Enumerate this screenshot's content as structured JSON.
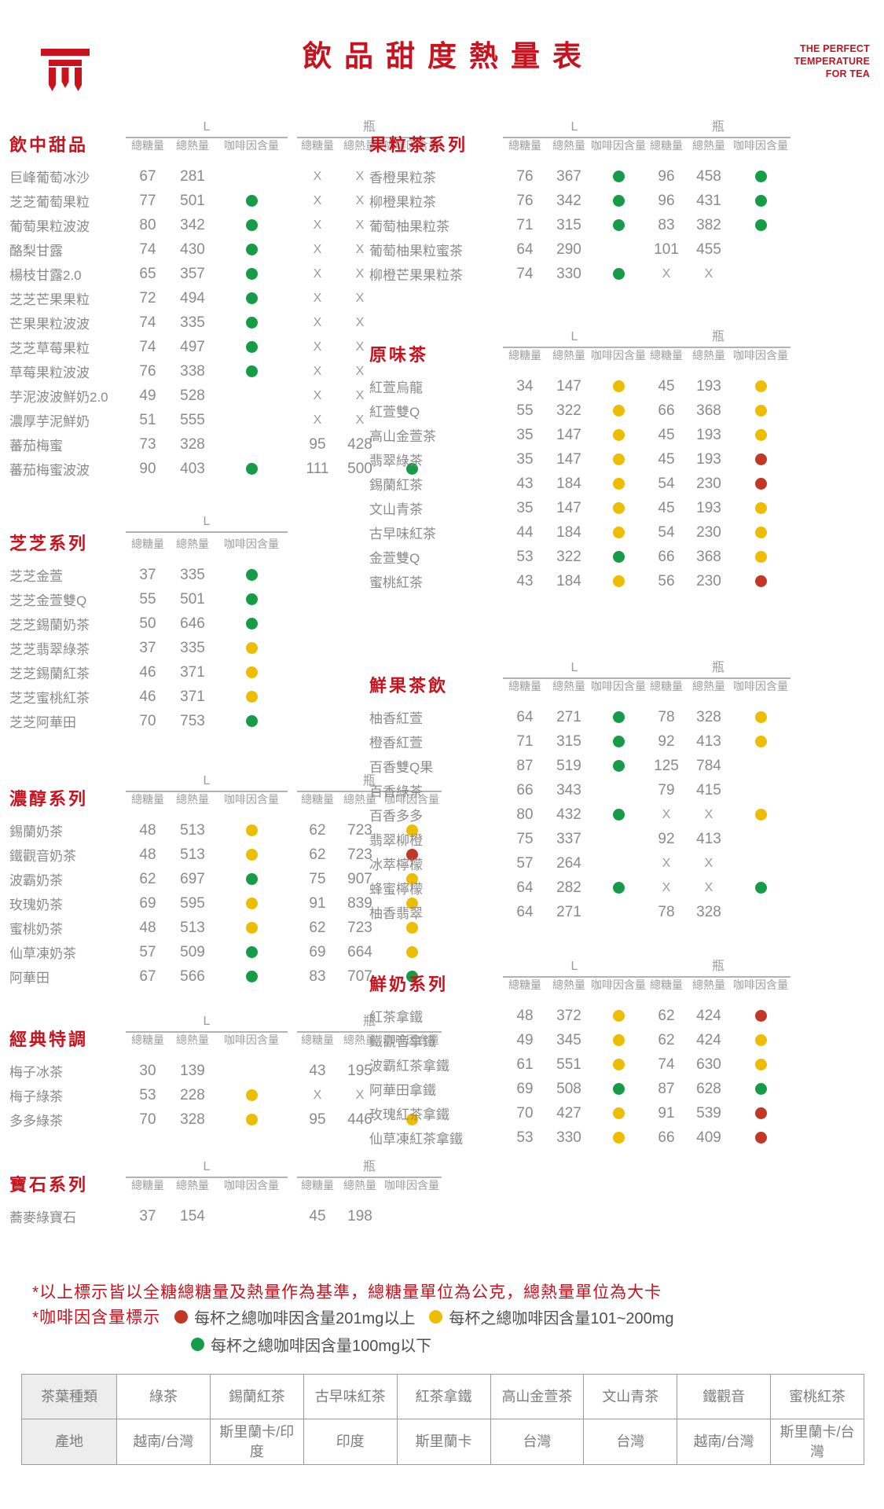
{
  "header": {
    "title": "飲品甜度熱量表",
    "slogan": [
      "THE PERFECT",
      "TEMPERATURE",
      "FOR TEA"
    ]
  },
  "colors": {
    "brand_red": "#C8131E",
    "caffeine_green": "#169C47",
    "caffeine_yellow": "#EEBC00",
    "caffeine_red": "#C23726",
    "text_gray": "#8A8A8A"
  },
  "headers": {
    "size_l": "L",
    "size_bottle": "瓶",
    "sugar": "總糖量",
    "calories": "總熱量",
    "caffeine": "咖啡因含量"
  },
  "sections": [
    {
      "id": "drink-desserts",
      "title": "飲中甜品",
      "side": "left",
      "has_bottle": true,
      "rows": [
        {
          "n": "巨峰葡萄冰沙",
          "l": [
            "67",
            "281",
            "none"
          ],
          "b": [
            "X",
            "X",
            "none"
          ]
        },
        {
          "n": "芝芝葡萄果粒",
          "l": [
            "77",
            "501",
            "green"
          ],
          "b": [
            "X",
            "X",
            "none"
          ]
        },
        {
          "n": "葡萄果粒波波",
          "l": [
            "80",
            "342",
            "green"
          ],
          "b": [
            "X",
            "X",
            "none"
          ]
        },
        {
          "n": "酪梨甘露",
          "l": [
            "74",
            "430",
            "green"
          ],
          "b": [
            "X",
            "X",
            "none"
          ]
        },
        {
          "n": "楊枝甘露2.0",
          "l": [
            "65",
            "357",
            "green"
          ],
          "b": [
            "X",
            "X",
            "none"
          ]
        },
        {
          "n": "芝芝芒果果粒",
          "l": [
            "72",
            "494",
            "green"
          ],
          "b": [
            "X",
            "X",
            "none"
          ]
        },
        {
          "n": "芒果果粒波波",
          "l": [
            "74",
            "335",
            "green"
          ],
          "b": [
            "X",
            "X",
            "none"
          ]
        },
        {
          "n": "芝芝草莓果粒",
          "l": [
            "74",
            "497",
            "green"
          ],
          "b": [
            "X",
            "X",
            "none"
          ]
        },
        {
          "n": "草莓果粒波波",
          "l": [
            "76",
            "338",
            "green"
          ],
          "b": [
            "X",
            "X",
            "none"
          ]
        },
        {
          "n": "芋泥波波鮮奶2.0",
          "l": [
            "49",
            "528",
            "none"
          ],
          "b": [
            "X",
            "X",
            "none"
          ]
        },
        {
          "n": "濃厚芋泥鮮奶",
          "l": [
            "51",
            "555",
            "none"
          ],
          "b": [
            "X",
            "X",
            "none"
          ]
        },
        {
          "n": "蕃茄梅蜜",
          "l": [
            "73",
            "328",
            "none"
          ],
          "b": [
            "95",
            "428",
            "none"
          ]
        },
        {
          "n": "蕃茄梅蜜波波",
          "l": [
            "90",
            "403",
            "green"
          ],
          "b": [
            "111",
            "500",
            "green"
          ]
        }
      ]
    },
    {
      "id": "cheese-series",
      "title": "芝芝系列",
      "side": "left",
      "has_bottle": false,
      "rows": [
        {
          "n": "芝芝金萱",
          "l": [
            "37",
            "335",
            "green"
          ]
        },
        {
          "n": "芝芝金萱雙Q",
          "l": [
            "55",
            "501",
            "green"
          ]
        },
        {
          "n": "芝芝錫蘭奶茶",
          "l": [
            "50",
            "646",
            "green"
          ]
        },
        {
          "n": "芝芝翡翠綠茶",
          "l": [
            "37",
            "335",
            "yellow"
          ]
        },
        {
          "n": "芝芝錫蘭紅茶",
          "l": [
            "46",
            "371",
            "yellow"
          ]
        },
        {
          "n": "芝芝蜜桃紅茶",
          "l": [
            "46",
            "371",
            "yellow"
          ]
        },
        {
          "n": "芝芝阿華田",
          "l": [
            "70",
            "753",
            "green"
          ]
        }
      ]
    },
    {
      "id": "rich-milk-tea-series",
      "title": "濃醇系列",
      "side": "left",
      "has_bottle": true,
      "rows": [
        {
          "n": "錫蘭奶茶",
          "l": [
            "48",
            "513",
            "yellow"
          ],
          "b": [
            "62",
            "723",
            "yellow"
          ]
        },
        {
          "n": "鐵觀音奶茶",
          "l": [
            "48",
            "513",
            "yellow"
          ],
          "b": [
            "62",
            "723",
            "red"
          ]
        },
        {
          "n": "波霸奶茶",
          "l": [
            "62",
            "697",
            "green"
          ],
          "b": [
            "75",
            "907",
            "yellow"
          ]
        },
        {
          "n": "玫瑰奶茶",
          "l": [
            "69",
            "595",
            "yellow"
          ],
          "b": [
            "91",
            "839",
            "yellow"
          ]
        },
        {
          "n": "蜜桃奶茶",
          "l": [
            "48",
            "513",
            "yellow"
          ],
          "b": [
            "62",
            "723",
            "yellow"
          ]
        },
        {
          "n": "仙草凍奶茶",
          "l": [
            "57",
            "509",
            "green"
          ],
          "b": [
            "69",
            "664",
            "yellow"
          ]
        },
        {
          "n": "阿華田",
          "l": [
            "67",
            "566",
            "green"
          ],
          "b": [
            "83",
            "707",
            "green"
          ]
        }
      ]
    },
    {
      "id": "classic-special",
      "title": "經典特調",
      "side": "left",
      "has_bottle": true,
      "rows": [
        {
          "n": "梅子冰茶",
          "l": [
            "30",
            "139",
            "none"
          ],
          "b": [
            "43",
            "195",
            "none"
          ]
        },
        {
          "n": "梅子綠茶",
          "l": [
            "53",
            "228",
            "yellow"
          ],
          "b": [
            "X",
            "X",
            "none"
          ]
        },
        {
          "n": "多多綠茶",
          "l": [
            "70",
            "328",
            "yellow"
          ],
          "b": [
            "95",
            "446",
            "yellow"
          ]
        }
      ]
    },
    {
      "id": "gem-series",
      "title": "寶石系列",
      "side": "left",
      "has_bottle": true,
      "rows": [
        {
          "n": "蕎麥綠寶石",
          "l": [
            "37",
            "154",
            "none"
          ],
          "b": [
            "45",
            "198",
            "none"
          ]
        }
      ]
    },
    {
      "id": "fruit-tea-series",
      "title": "果粒茶系列",
      "side": "right",
      "has_bottle": true,
      "rows": [
        {
          "n": "香橙果粒茶",
          "l": [
            "76",
            "367",
            "green"
          ],
          "b": [
            "96",
            "458",
            "green"
          ]
        },
        {
          "n": "柳橙果粒茶",
          "l": [
            "76",
            "342",
            "green"
          ],
          "b": [
            "96",
            "431",
            "green"
          ]
        },
        {
          "n": "葡萄柚果粒茶",
          "l": [
            "71",
            "315",
            "green"
          ],
          "b": [
            "83",
            "382",
            "green"
          ]
        },
        {
          "n": "葡萄柚果粒蜜茶",
          "l": [
            "64",
            "290",
            "none"
          ],
          "b": [
            "101",
            "455",
            "none"
          ]
        },
        {
          "n": "柳橙芒果果粒茶",
          "l": [
            "74",
            "330",
            "green"
          ],
          "b": [
            "X",
            "X",
            "none"
          ]
        }
      ]
    },
    {
      "id": "original-tea",
      "title": "原味茶",
      "side": "right",
      "has_bottle": true,
      "rows": [
        {
          "n": "紅萱烏龍",
          "l": [
            "34",
            "147",
            "yellow"
          ],
          "b": [
            "45",
            "193",
            "yellow"
          ]
        },
        {
          "n": "紅萱雙Q",
          "l": [
            "55",
            "322",
            "yellow"
          ],
          "b": [
            "66",
            "368",
            "yellow"
          ]
        },
        {
          "n": "高山金萱茶",
          "l": [
            "35",
            "147",
            "yellow"
          ],
          "b": [
            "45",
            "193",
            "yellow"
          ]
        },
        {
          "n": "翡翠綠茶",
          "l": [
            "35",
            "147",
            "yellow"
          ],
          "b": [
            "45",
            "193",
            "red"
          ]
        },
        {
          "n": "錫蘭紅茶",
          "l": [
            "43",
            "184",
            "yellow"
          ],
          "b": [
            "54",
            "230",
            "red"
          ]
        },
        {
          "n": "文山青茶",
          "l": [
            "35",
            "147",
            "yellow"
          ],
          "b": [
            "45",
            "193",
            "yellow"
          ]
        },
        {
          "n": "古早味紅茶",
          "l": [
            "44",
            "184",
            "yellow"
          ],
          "b": [
            "54",
            "230",
            "yellow"
          ]
        },
        {
          "n": "金萱雙Q",
          "l": [
            "53",
            "322",
            "green"
          ],
          "b": [
            "66",
            "368",
            "yellow"
          ]
        },
        {
          "n": "蜜桃紅茶",
          "l": [
            "43",
            "184",
            "yellow"
          ],
          "b": [
            "56",
            "230",
            "red"
          ]
        }
      ]
    },
    {
      "id": "fresh-fruit-tea",
      "title": "鮮果茶飲",
      "side": "right",
      "has_bottle": true,
      "rows": [
        {
          "n": "柚香紅萱",
          "l": [
            "64",
            "271",
            "green"
          ],
          "b": [
            "78",
            "328",
            "yellow"
          ]
        },
        {
          "n": "橙香紅萱",
          "l": [
            "71",
            "315",
            "green"
          ],
          "b": [
            "92",
            "413",
            "yellow"
          ]
        },
        {
          "n": "百香雙Q果",
          "l": [
            "87",
            "519",
            "green"
          ],
          "b": [
            "125",
            "784",
            "none"
          ]
        },
        {
          "n": "百香綠茶",
          "l": [
            "66",
            "343",
            "none"
          ],
          "b": [
            "79",
            "415",
            "none"
          ]
        },
        {
          "n": "百香多多",
          "l": [
            "80",
            "432",
            "green"
          ],
          "b": [
            "X",
            "X",
            "yellow"
          ]
        },
        {
          "n": "翡翠柳橙",
          "l": [
            "75",
            "337",
            "none"
          ],
          "b": [
            "92",
            "413",
            "none"
          ]
        },
        {
          "n": "冰萃檸檬",
          "l": [
            "57",
            "264",
            "none"
          ],
          "b": [
            "X",
            "X",
            "none"
          ]
        },
        {
          "n": "蜂蜜檸檬",
          "l": [
            "64",
            "282",
            "green"
          ],
          "b": [
            "X",
            "X",
            "green"
          ]
        },
        {
          "n": "柚香翡翠",
          "l": [
            "64",
            "271",
            "none"
          ],
          "b": [
            "78",
            "328",
            "none"
          ]
        }
      ]
    },
    {
      "id": "fresh-milk-series",
      "title": "鮮奶系列",
      "side": "right",
      "has_bottle": true,
      "rows": [
        {
          "n": "紅茶拿鐵",
          "l": [
            "48",
            "372",
            "yellow"
          ],
          "b": [
            "62",
            "424",
            "red"
          ]
        },
        {
          "n": "鐵觀音拿鐵",
          "l": [
            "49",
            "345",
            "yellow"
          ],
          "b": [
            "62",
            "424",
            "yellow"
          ]
        },
        {
          "n": "波霸紅茶拿鐵",
          "l": [
            "61",
            "551",
            "yellow"
          ],
          "b": [
            "74",
            "630",
            "yellow"
          ]
        },
        {
          "n": "阿華田拿鐵",
          "l": [
            "69",
            "508",
            "green"
          ],
          "b": [
            "87",
            "628",
            "green"
          ]
        },
        {
          "n": "玫瑰紅茶拿鐵",
          "l": [
            "70",
            "427",
            "yellow"
          ],
          "b": [
            "91",
            "539",
            "red"
          ]
        },
        {
          "n": "仙草凍紅茶拿鐵",
          "l": [
            "53",
            "330",
            "yellow"
          ],
          "b": [
            "66",
            "409",
            "red"
          ]
        }
      ]
    }
  ],
  "notes": {
    "note1": "*以上標示皆以全糖總糖量及熱量作為基準，總糖量單位為公克，總熱量單位為大卡",
    "note2_label": "*咖啡因含量標示"
  },
  "legend": {
    "red": "每杯之總咖啡因含量201mg以上",
    "yellow": "每杯之總咖啡因含量101~200mg",
    "green": "每杯之總咖啡因含量100mg以下"
  },
  "origin_table": {
    "row1_label": "茶葉種類",
    "row2_label": "產地",
    "columns": [
      {
        "type": "綠茶",
        "origin": "越南/台灣"
      },
      {
        "type": "錫蘭紅茶",
        "origin": "斯里蘭卡/印度"
      },
      {
        "type": "古早味紅茶",
        "origin": "印度"
      },
      {
        "type": "紅茶拿鐵",
        "origin": "斯里蘭卡"
      },
      {
        "type": "高山金萱茶",
        "origin": "台灣"
      },
      {
        "type": "文山青茶",
        "origin": "台灣"
      },
      {
        "type": "鐵觀音",
        "origin": "越南/台灣"
      },
      {
        "type": "蜜桃紅茶",
        "origin": "斯里蘭卡/台灣"
      }
    ]
  }
}
